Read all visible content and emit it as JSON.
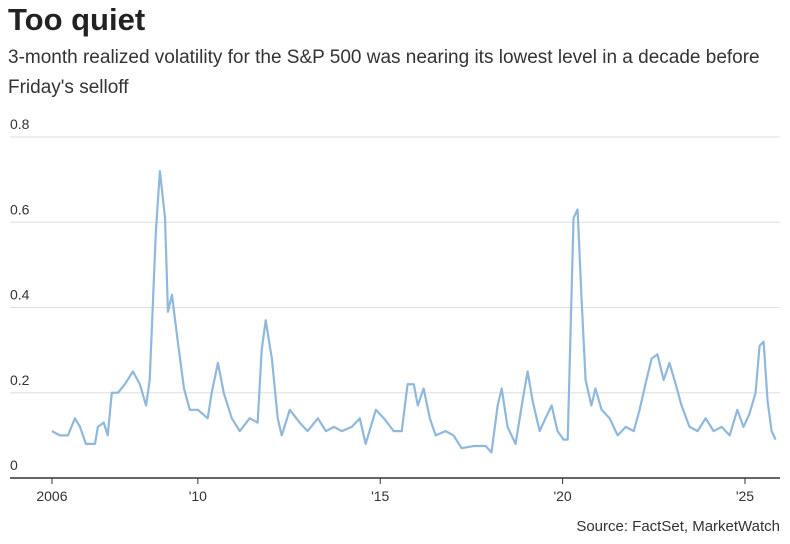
{
  "chart_data": {
    "type": "line",
    "title": "Too quiet",
    "subtitle": "3-month realized volatility for the S&P 500 was nearing its lowest level in a decade before Friday's selloff",
    "source": "Source: FactSet, MarketWatch",
    "x": [
      2006.0,
      2006.22,
      2006.44,
      2006.63,
      2006.77,
      2006.93,
      2007.18,
      2007.26,
      2007.42,
      2007.53,
      2007.64,
      2007.81,
      2008.0,
      2008.22,
      2008.41,
      2008.58,
      2008.68,
      2008.85,
      2008.96,
      2009.1,
      2009.18,
      2009.29,
      2009.45,
      2009.62,
      2009.78,
      2010.0,
      2010.27,
      2010.38,
      2010.55,
      2010.71,
      2010.93,
      2011.15,
      2011.42,
      2011.64,
      2011.75,
      2011.86,
      2012.03,
      2012.19,
      2012.3,
      2012.52,
      2012.79,
      2013.01,
      2013.29,
      2013.51,
      2013.73,
      2013.95,
      2014.22,
      2014.44,
      2014.6,
      2014.88,
      2015.1,
      2015.37,
      2015.59,
      2015.75,
      2015.92,
      2016.03,
      2016.19,
      2016.36,
      2016.52,
      2016.79,
      2017.01,
      2017.23,
      2017.56,
      2017.89,
      2018.05,
      2018.22,
      2018.33,
      2018.49,
      2018.71,
      2018.88,
      2019.04,
      2019.18,
      2019.37,
      2019.53,
      2019.7,
      2019.86,
      2020.03,
      2020.14,
      2020.3,
      2020.41,
      2020.52,
      2020.63,
      2020.79,
      2020.9,
      2021.07,
      2021.29,
      2021.51,
      2021.73,
      2021.95,
      2022.11,
      2022.27,
      2022.44,
      2022.6,
      2022.77,
      2022.93,
      2023.1,
      2023.26,
      2023.48,
      2023.7,
      2023.92,
      2024.14,
      2024.36,
      2024.58,
      2024.79,
      2024.96,
      2025.12,
      2025.29,
      2025.4,
      2025.51,
      2025.62,
      2025.73,
      2025.84
    ],
    "series": [
      {
        "color": "#8fb8dc",
        "values": [
          0.11,
          0.1,
          0.1,
          0.14,
          0.12,
          0.08,
          0.08,
          0.12,
          0.13,
          0.1,
          0.2,
          0.2,
          0.22,
          0.25,
          0.22,
          0.17,
          0.23,
          0.58,
          0.72,
          0.61,
          0.39,
          0.43,
          0.32,
          0.21,
          0.16,
          0.16,
          0.14,
          0.2,
          0.27,
          0.2,
          0.14,
          0.11,
          0.14,
          0.13,
          0.3,
          0.37,
          0.28,
          0.14,
          0.1,
          0.16,
          0.13,
          0.11,
          0.14,
          0.11,
          0.12,
          0.11,
          0.12,
          0.14,
          0.08,
          0.16,
          0.14,
          0.11,
          0.11,
          0.22,
          0.22,
          0.17,
          0.21,
          0.14,
          0.1,
          0.11,
          0.1,
          0.07,
          0.075,
          0.075,
          0.06,
          0.17,
          0.21,
          0.12,
          0.08,
          0.17,
          0.25,
          0.18,
          0.11,
          0.14,
          0.17,
          0.11,
          0.09,
          0.09,
          0.61,
          0.63,
          0.42,
          0.23,
          0.17,
          0.21,
          0.16,
          0.14,
          0.1,
          0.12,
          0.11,
          0.16,
          0.22,
          0.28,
          0.29,
          0.23,
          0.27,
          0.22,
          0.17,
          0.12,
          0.11,
          0.14,
          0.11,
          0.12,
          0.1,
          0.16,
          0.12,
          0.15,
          0.2,
          0.31,
          0.32,
          0.18,
          0.11,
          0.09
        ]
      }
    ],
    "xlim": [
      2004.85,
      2025.96
    ],
    "xticks": [
      {
        "value": 2006,
        "label": "2006"
      },
      {
        "value": 2010,
        "label": "'10"
      },
      {
        "value": 2015,
        "label": "'15"
      },
      {
        "value": 2020,
        "label": "'20"
      },
      {
        "value": 2025,
        "label": "'25"
      }
    ],
    "ylim": [
      0,
      0.8
    ],
    "yticks": [
      0,
      0.2,
      0.4,
      0.6,
      0.8
    ],
    "grid": true
  }
}
